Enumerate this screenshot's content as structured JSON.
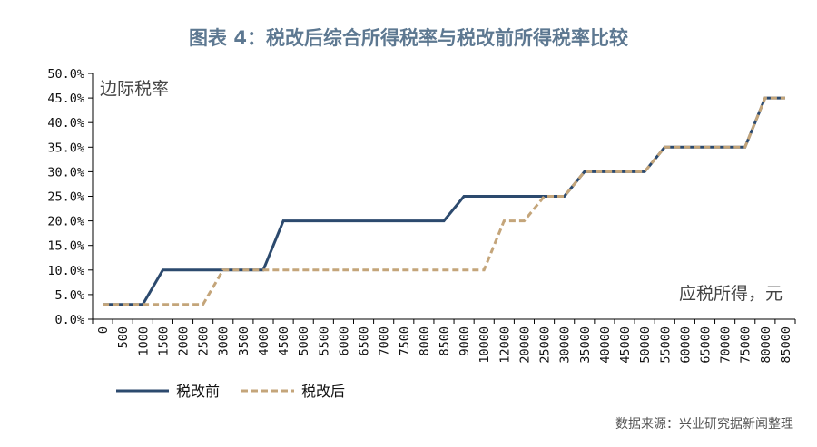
{
  "title": "图表 4：税改后综合所得税率与税改前所得税率比较",
  "source": "数据来源：兴业研究据新闻整理",
  "colors": {
    "before": "#2c4a6e",
    "after": "#c4a57a"
  },
  "chart_data": {
    "type": "line",
    "title": "图表 4：税改后综合所得税率与税改前所得税率比较",
    "xlabel": "应税所得，元",
    "ylabel": "边际税率",
    "categories": [
      "0",
      "500",
      "1000",
      "1500",
      "2000",
      "2500",
      "3000",
      "3500",
      "4000",
      "4500",
      "5000",
      "5500",
      "6000",
      "6500",
      "7000",
      "7500",
      "8000",
      "8500",
      "9000",
      "10000",
      "12000",
      "20000",
      "25000",
      "30000",
      "35000",
      "40000",
      "45000",
      "50000",
      "55000",
      "60000",
      "65000",
      "70000",
      "75000",
      "80000",
      "85000"
    ],
    "yticks": [
      "0.0%",
      "5.0%",
      "10.0%",
      "15.0%",
      "20.0%",
      "25.0%",
      "30.0%",
      "35.0%",
      "40.0%",
      "45.0%",
      "50.0%"
    ],
    "ylim": [
      0,
      50
    ],
    "legend_position": "bottom-left",
    "grid": false,
    "series": [
      {
        "name": "税改前",
        "style": "solid",
        "values": [
          3,
          3,
          3,
          10,
          10,
          10,
          10,
          10,
          10,
          20,
          20,
          20,
          20,
          20,
          20,
          20,
          20,
          20,
          25,
          25,
          25,
          25,
          25,
          25,
          30,
          30,
          30,
          30,
          35,
          35,
          35,
          35,
          35,
          45,
          45
        ]
      },
      {
        "name": "税改后",
        "style": "dashed",
        "values": [
          3,
          3,
          3,
          3,
          3,
          3,
          10,
          10,
          10,
          10,
          10,
          10,
          10,
          10,
          10,
          10,
          10,
          10,
          10,
          10,
          20,
          20,
          25,
          25,
          30,
          30,
          30,
          30,
          35,
          35,
          35,
          35,
          35,
          45,
          45
        ]
      }
    ]
  }
}
